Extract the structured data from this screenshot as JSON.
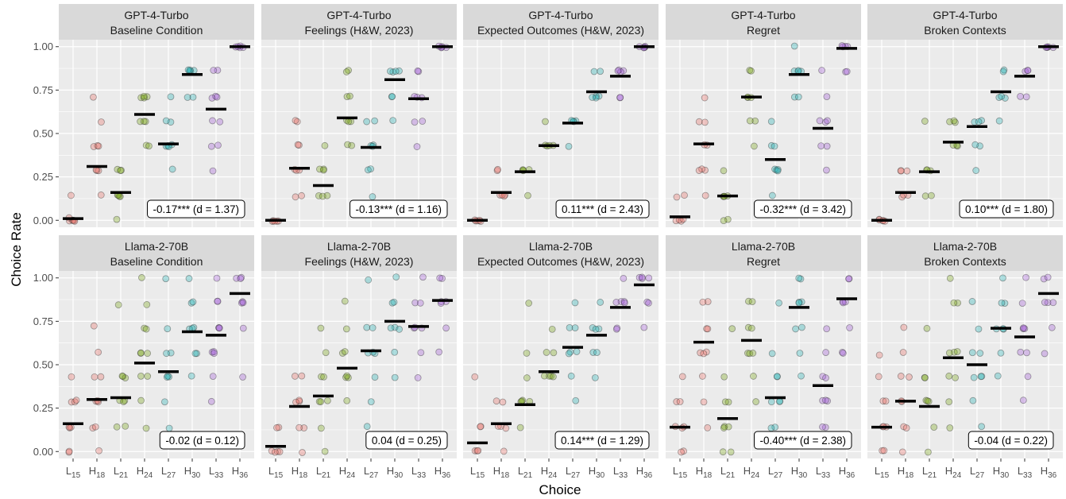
{
  "chart_data": {
    "type": "scatter",
    "xlabel": "Choice",
    "ylabel": "Choice Rate",
    "ylim": [
      -0.04,
      1.04
    ],
    "yticks": [
      "0.00",
      "0.25",
      "0.50",
      "0.75",
      "1.00"
    ],
    "ytick_values": [
      0,
      0.25,
      0.5,
      0.75,
      1.0
    ],
    "categories": [
      {
        "base": "L",
        "sub": "15"
      },
      {
        "base": "H",
        "sub": "18"
      },
      {
        "base": "L",
        "sub": "21"
      },
      {
        "base": "H",
        "sub": "24"
      },
      {
        "base": "L",
        "sub": "27"
      },
      {
        "base": "H",
        "sub": "30"
      },
      {
        "base": "L",
        "sub": "33"
      },
      {
        "base": "H",
        "sub": "36"
      }
    ],
    "category_colors": [
      "#f8766d",
      "#cd9600",
      "#7cae00",
      "#00be67",
      "#00bfc4",
      "#00a9ff",
      "#c77cff",
      "#ff61cc"
    ],
    "point_colors": [
      "#e8736b",
      "#e8736b",
      "#7aa61a",
      "#7aa61a",
      "#27b2b5",
      "#27b2b5",
      "#a25fd6",
      "#a25fd6"
    ],
    "grid": true,
    "panels": [
      {
        "model": "GPT-4-Turbo",
        "condition": "Baseline Condition",
        "annotation": "-0.17*** (d = 1.37)",
        "means": [
          0.01,
          0.31,
          0.16,
          0.61,
          0.44,
          0.84,
          0.64,
          1.0
        ],
        "points": [
          [
            0,
            0,
            0,
            0.01,
            0,
            0.14,
            0
          ],
          [
            0.29,
            0.29,
            0.43,
            0.43,
            0.14,
            0.71,
            0.57,
            0.29,
            0.43
          ],
          [
            0.14,
            0.14,
            0.29,
            0.29,
            0.14,
            0,
            0.14,
            0.29
          ],
          [
            0.57,
            0.71,
            0.71,
            0.71,
            0.57,
            0.43,
            0.43,
            0.57,
            0.71
          ],
          [
            0.43,
            0.43,
            0.57,
            0.57,
            0.43,
            0.29,
            0.71,
            0.43
          ],
          [
            0.86,
            0.86,
            0.86,
            0.86,
            0.71,
            0.71,
            0.86
          ],
          [
            0.71,
            0.71,
            0.57,
            0.57,
            0.43,
            0.43,
            0.86,
            0.86,
            0.29,
            0.71
          ],
          [
            1,
            1,
            1,
            1,
            1
          ]
        ]
      },
      {
        "model": "GPT-4-Turbo",
        "condition": "Feelings (H&W, 2023)",
        "annotation": "-0.13*** (d = 1.16)",
        "means": [
          0.0,
          0.3,
          0.2,
          0.59,
          0.42,
          0.81,
          0.7,
          1.0
        ],
        "points": [
          [
            0,
            0,
            0,
            0,
            0
          ],
          [
            0.29,
            0.29,
            0.43,
            0.43,
            0.14,
            0.57,
            0.57,
            0.14,
            0.29
          ],
          [
            0.14,
            0.14,
            0.29,
            0.29,
            0.29,
            0.43,
            0.14
          ],
          [
            0.57,
            0.57,
            0.71,
            0.71,
            0.43,
            0.86,
            0.86,
            0.43,
            0.57
          ],
          [
            0.43,
            0.43,
            0.57,
            0.57,
            0.29,
            0.14,
            0.43,
            0.29
          ],
          [
            0.86,
            0.86,
            0.86,
            0.71,
            0.71,
            0.57,
            0.86
          ],
          [
            0.71,
            0.71,
            0.57,
            0.57,
            0.86,
            0.86,
            0.43,
            0.71
          ],
          [
            1,
            1,
            1,
            1,
            1
          ]
        ]
      },
      {
        "model": "GPT-4-Turbo",
        "condition": "Expected Outcomes (H&W, 2023)",
        "annotation": "0.11*** (d = 2.43)",
        "means": [
          0.0,
          0.16,
          0.28,
          0.43,
          0.56,
          0.74,
          0.83,
          1.0
        ],
        "points": [
          [
            0,
            0,
            0,
            0,
            0
          ],
          [
            0.14,
            0.14,
            0.14,
            0.29,
            0.29,
            0.14
          ],
          [
            0.29,
            0.29,
            0.29,
            0.14,
            0.29
          ],
          [
            0.43,
            0.43,
            0.43,
            0.43,
            0.57
          ],
          [
            0.57,
            0.57,
            0.57,
            0.43,
            0.57
          ],
          [
            0.71,
            0.71,
            0.71,
            0.86,
            0.86,
            0.71
          ],
          [
            0.86,
            0.86,
            0.86,
            0.71,
            0.71,
            0.86
          ],
          [
            1,
            1,
            1,
            1,
            1
          ]
        ]
      },
      {
        "model": "GPT-4-Turbo",
        "condition": "Regret",
        "annotation": "-0.32*** (d = 3.42)",
        "means": [
          0.02,
          0.44,
          0.14,
          0.71,
          0.35,
          0.84,
          0.53,
          0.99
        ],
        "points": [
          [
            0,
            0,
            0,
            0.14,
            0.14,
            0
          ],
          [
            0.43,
            0.43,
            0.57,
            0.57,
            0.29,
            0.29,
            0.71,
            0.14,
            0.29
          ],
          [
            0.14,
            0.14,
            0.14,
            0,
            0,
            0.29,
            0.14
          ],
          [
            0.71,
            0.71,
            0.86,
            0.86,
            0.57,
            0.57,
            0.71,
            0.43
          ],
          [
            0.29,
            0.29,
            0.43,
            0.43,
            0.29,
            0.14,
            0.57,
            0.29
          ],
          [
            0.86,
            0.86,
            0.86,
            0.71,
            0.71,
            1.0,
            0.86
          ],
          [
            0.57,
            0.57,
            0.43,
            0.43,
            0.71,
            0.29,
            0.86,
            0.57
          ],
          [
            1,
            1,
            1,
            0.86,
            0.86,
            1
          ]
        ]
      },
      {
        "model": "GPT-4-Turbo",
        "condition": "Broken Contexts",
        "annotation": "0.10*** (d = 1.80)",
        "means": [
          0.0,
          0.16,
          0.28,
          0.45,
          0.54,
          0.74,
          0.83,
          1.0
        ],
        "points": [
          [
            0,
            0,
            0,
            0,
            0
          ],
          [
            0.14,
            0.14,
            0.29,
            0.29,
            0.14,
            0.29
          ],
          [
            0.29,
            0.29,
            0.29,
            0.14,
            0.57,
            0.14
          ],
          [
            0.43,
            0.43,
            0.57,
            0.57,
            0.43,
            0.57
          ],
          [
            0.57,
            0.57,
            0.57,
            0.43,
            0.29,
            0.43
          ],
          [
            0.71,
            0.71,
            0.86,
            0.86,
            0.57,
            0.71
          ],
          [
            0.86,
            0.86,
            0.86,
            0.71,
            0.71
          ],
          [
            1,
            1,
            1,
            1,
            1
          ]
        ]
      },
      {
        "model": "Llama-2-70B",
        "condition": "Baseline Condition",
        "annotation": "-0.02 (d = 0.12)",
        "means": [
          0.16,
          0.3,
          0.31,
          0.51,
          0.46,
          0.69,
          0.67,
          0.91
        ],
        "points": [
          [
            0.14,
            0.14,
            0.29,
            0.29,
            0,
            0,
            0.43,
            0.14,
            0.29
          ],
          [
            0.29,
            0.29,
            0.43,
            0.43,
            0.14,
            0.57,
            0.72,
            0,
            0.14,
            0.29
          ],
          [
            0.29,
            0.29,
            0.43,
            0.43,
            0.14,
            0.14,
            0.85,
            0.29,
            0.43
          ],
          [
            0.57,
            0.57,
            0.43,
            0.43,
            0.71,
            0.71,
            0.85,
            0.29,
            0.14,
            1.0,
            0.57
          ],
          [
            0.43,
            0.43,
            0.57,
            0.57,
            0.29,
            0.71,
            0.14,
            0.99,
            0.43
          ],
          [
            0.71,
            0.71,
            0.57,
            0.57,
            0.86,
            0.86,
            0.43,
            1.0,
            0.71
          ],
          [
            0.71,
            0.71,
            0.57,
            0.57,
            0.86,
            0.86,
            0.43,
            0.29,
            1.0,
            0.71,
            0.57
          ],
          [
            1,
            1,
            0.86,
            0.86,
            0.71,
            0.43,
            1,
            0.86
          ]
        ]
      },
      {
        "model": "Llama-2-70B",
        "condition": "Feelings (H&W, 2023)",
        "annotation": "0.04 (d = 0.25)",
        "means": [
          0.03,
          0.26,
          0.32,
          0.48,
          0.58,
          0.75,
          0.72,
          0.87
        ],
        "points": [
          [
            0,
            0,
            0,
            0.14,
            0.14,
            0
          ],
          [
            0.29,
            0.29,
            0.43,
            0.43,
            0.14,
            0.29,
            0,
            0.14
          ],
          [
            0.29,
            0.29,
            0.43,
            0.43,
            0.14,
            0.57,
            0.71,
            0,
            0.29
          ],
          [
            0.43,
            0.43,
            0.57,
            0.57,
            0.71,
            0.29,
            0.86,
            0.43
          ],
          [
            0.57,
            0.57,
            0.71,
            0.71,
            0.43,
            0.29,
            0.14,
            0.99,
            0.57
          ],
          [
            0.71,
            0.71,
            0.86,
            0.86,
            0.57,
            0.43,
            1.0,
            0.71
          ],
          [
            0.71,
            0.71,
            0.86,
            0.86,
            0.57,
            1.0,
            0.43,
            0.71
          ],
          [
            0.86,
            0.86,
            1,
            1,
            0.71,
            0.57,
            0.86
          ]
        ]
      },
      {
        "model": "Llama-2-70B",
        "condition": "Expected Outcomes (H&W, 2023)",
        "annotation": "0.14*** (d = 1.29)",
        "means": [
          0.05,
          0.16,
          0.27,
          0.46,
          0.6,
          0.67,
          0.83,
          0.96
        ],
        "points": [
          [
            0,
            0,
            0,
            0.14,
            0.14,
            0.43
          ],
          [
            0.14,
            0.14,
            0.29,
            0.29,
            0,
            0.14
          ],
          [
            0.29,
            0.29,
            0.29,
            0.14,
            0.43,
            0.86,
            0.57,
            0.29
          ],
          [
            0.43,
            0.43,
            0.57,
            0.57,
            0.43,
            0.71,
            0.43
          ],
          [
            0.57,
            0.57,
            0.71,
            0.71,
            0.43,
            0.86,
            0.29,
            0.57
          ],
          [
            0.71,
            0.71,
            0.57,
            0.57,
            0.86,
            0.43,
            0.71
          ],
          [
            0.86,
            0.86,
            0.86,
            0.71,
            0.71,
            1.0,
            0.86
          ],
          [
            1,
            1,
            1,
            0.86,
            0.86,
            0.71,
            1
          ]
        ]
      },
      {
        "model": "Llama-2-70B",
        "condition": "Regret",
        "annotation": "-0.40*** (d = 2.38)",
        "means": [
          0.14,
          0.63,
          0.19,
          0.64,
          0.31,
          0.83,
          0.38,
          0.88
        ],
        "points": [
          [
            0.14,
            0.14,
            0.29,
            0.29,
            0,
            0,
            0.43,
            0.14
          ],
          [
            0.57,
            0.57,
            0.71,
            0.71,
            0.86,
            0.86,
            0.43,
            0.29,
            0.14,
            0.57
          ],
          [
            0.14,
            0.14,
            0.29,
            0.29,
            0,
            0,
            0.43,
            0.71,
            0.14
          ],
          [
            0.57,
            0.57,
            0.71,
            0.71,
            0.86,
            0.86,
            0.43,
            0.29,
            0.57
          ],
          [
            0.29,
            0.29,
            0.43,
            0.43,
            0.14,
            0.14,
            0.57,
            0.86,
            0.29
          ],
          [
            0.86,
            0.86,
            0.71,
            0.71,
            1.0,
            1.0,
            0.57,
            0.43,
            0.86
          ],
          [
            0.29,
            0.29,
            0.43,
            0.43,
            0.14,
            0.57,
            0.71,
            0.14,
            0.29
          ],
          [
            0.86,
            0.86,
            1,
            1,
            0.71,
            0.57,
            0.57,
            0.86
          ]
        ]
      },
      {
        "model": "Llama-2-70B",
        "condition": "Broken Contexts",
        "annotation": "-0.04 (d = 0.22)",
        "means": [
          0.14,
          0.29,
          0.26,
          0.54,
          0.5,
          0.71,
          0.66,
          0.91
        ],
        "points": [
          [
            0.14,
            0.14,
            0.29,
            0.29,
            0,
            0,
            0.43,
            0.56,
            0.14
          ],
          [
            0.29,
            0.29,
            0.43,
            0.43,
            0.14,
            0.14,
            0.57,
            0.71,
            0
          ],
          [
            0.29,
            0.29,
            0.43,
            0.43,
            0.14,
            0,
            0.71,
            0.29
          ],
          [
            0.57,
            0.57,
            0.43,
            0.43,
            0.86,
            0.86,
            0.29,
            0.14,
            1.0,
            0.57
          ],
          [
            0.43,
            0.43,
            0.57,
            0.57,
            0.29,
            0.71,
            0.14,
            0.86,
            0.43
          ],
          [
            0.71,
            0.71,
            0.86,
            0.86,
            0.57,
            0.43,
            1.0,
            0.71
          ],
          [
            0.71,
            0.71,
            0.57,
            0.57,
            0.86,
            0.43,
            1.0,
            0.29,
            0.71
          ],
          [
            0.86,
            0.86,
            1,
            1,
            0.71,
            0.57,
            0.86
          ]
        ]
      }
    ]
  }
}
